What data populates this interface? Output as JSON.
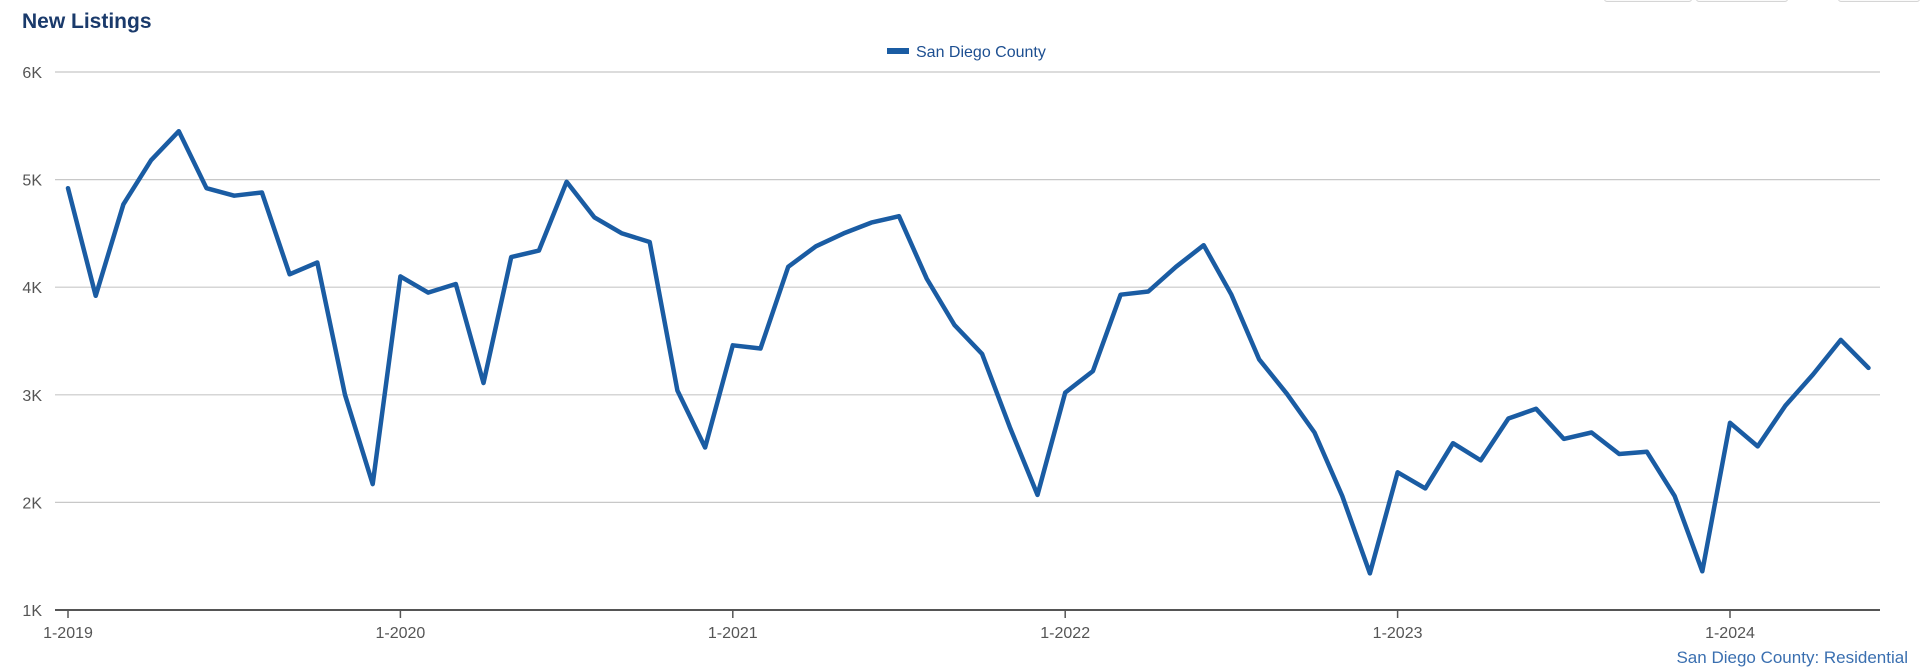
{
  "header": {
    "title": "New Listings"
  },
  "footer": {
    "source_note": "San Diego County: Residential"
  },
  "colors": {
    "series": "#1a5ca3",
    "grid": "#c8c8c8",
    "axis": "#555555",
    "title": "#1a3a6b"
  },
  "chart_data": {
    "type": "line",
    "title": "New Listings",
    "xlabel": "",
    "ylabel": "",
    "ylim": [
      1000,
      6000
    ],
    "yticks": [
      {
        "value": 1000,
        "label": "1K"
      },
      {
        "value": 2000,
        "label": "2K"
      },
      {
        "value": 3000,
        "label": "3K"
      },
      {
        "value": 4000,
        "label": "4K"
      },
      {
        "value": 5000,
        "label": "5K"
      },
      {
        "value": 6000,
        "label": "6K"
      }
    ],
    "xticks": [
      "1-2019",
      "1-2020",
      "1-2021",
      "1-2022",
      "1-2023",
      "1-2024"
    ],
    "grid": true,
    "legend_position": "top-center",
    "x": [
      "1-2019",
      "2-2019",
      "3-2019",
      "4-2019",
      "5-2019",
      "6-2019",
      "7-2019",
      "8-2019",
      "9-2019",
      "10-2019",
      "11-2019",
      "12-2019",
      "1-2020",
      "2-2020",
      "3-2020",
      "4-2020",
      "5-2020",
      "6-2020",
      "7-2020",
      "8-2020",
      "9-2020",
      "10-2020",
      "11-2020",
      "12-2020",
      "1-2021",
      "2-2021",
      "3-2021",
      "4-2021",
      "5-2021",
      "6-2021",
      "7-2021",
      "8-2021",
      "9-2021",
      "10-2021",
      "11-2021",
      "12-2021",
      "1-2022",
      "2-2022",
      "3-2022",
      "4-2022",
      "5-2022",
      "6-2022",
      "7-2022",
      "8-2022",
      "9-2022",
      "10-2022",
      "11-2022",
      "12-2022",
      "1-2023",
      "2-2023",
      "3-2023",
      "4-2023",
      "5-2023",
      "6-2023",
      "7-2023",
      "8-2023",
      "9-2023",
      "10-2023",
      "11-2023",
      "12-2023",
      "1-2024",
      "2-2024",
      "3-2024",
      "4-2024",
      "5-2024",
      "6-2024"
    ],
    "series": [
      {
        "name": "San Diego County",
        "values": [
          4920,
          3920,
          4770,
          5180,
          5450,
          4920,
          4850,
          4880,
          4120,
          4230,
          3000,
          2170,
          4100,
          3950,
          4030,
          3110,
          4280,
          4340,
          4980,
          4650,
          4500,
          4420,
          3040,
          2510,
          3460,
          3430,
          4190,
          4380,
          4500,
          4600,
          4660,
          4080,
          3650,
          3380,
          2700,
          2070,
          3020,
          3220,
          3930,
          3960,
          4190,
          4390,
          3930,
          3330,
          3010,
          2650,
          2060,
          1340,
          2280,
          2130,
          2550,
          2390,
          2780,
          2870,
          2590,
          2650,
          2450,
          2470,
          2060,
          1360,
          2740,
          2520,
          2900,
          3190,
          3510,
          3250
        ]
      }
    ]
  }
}
